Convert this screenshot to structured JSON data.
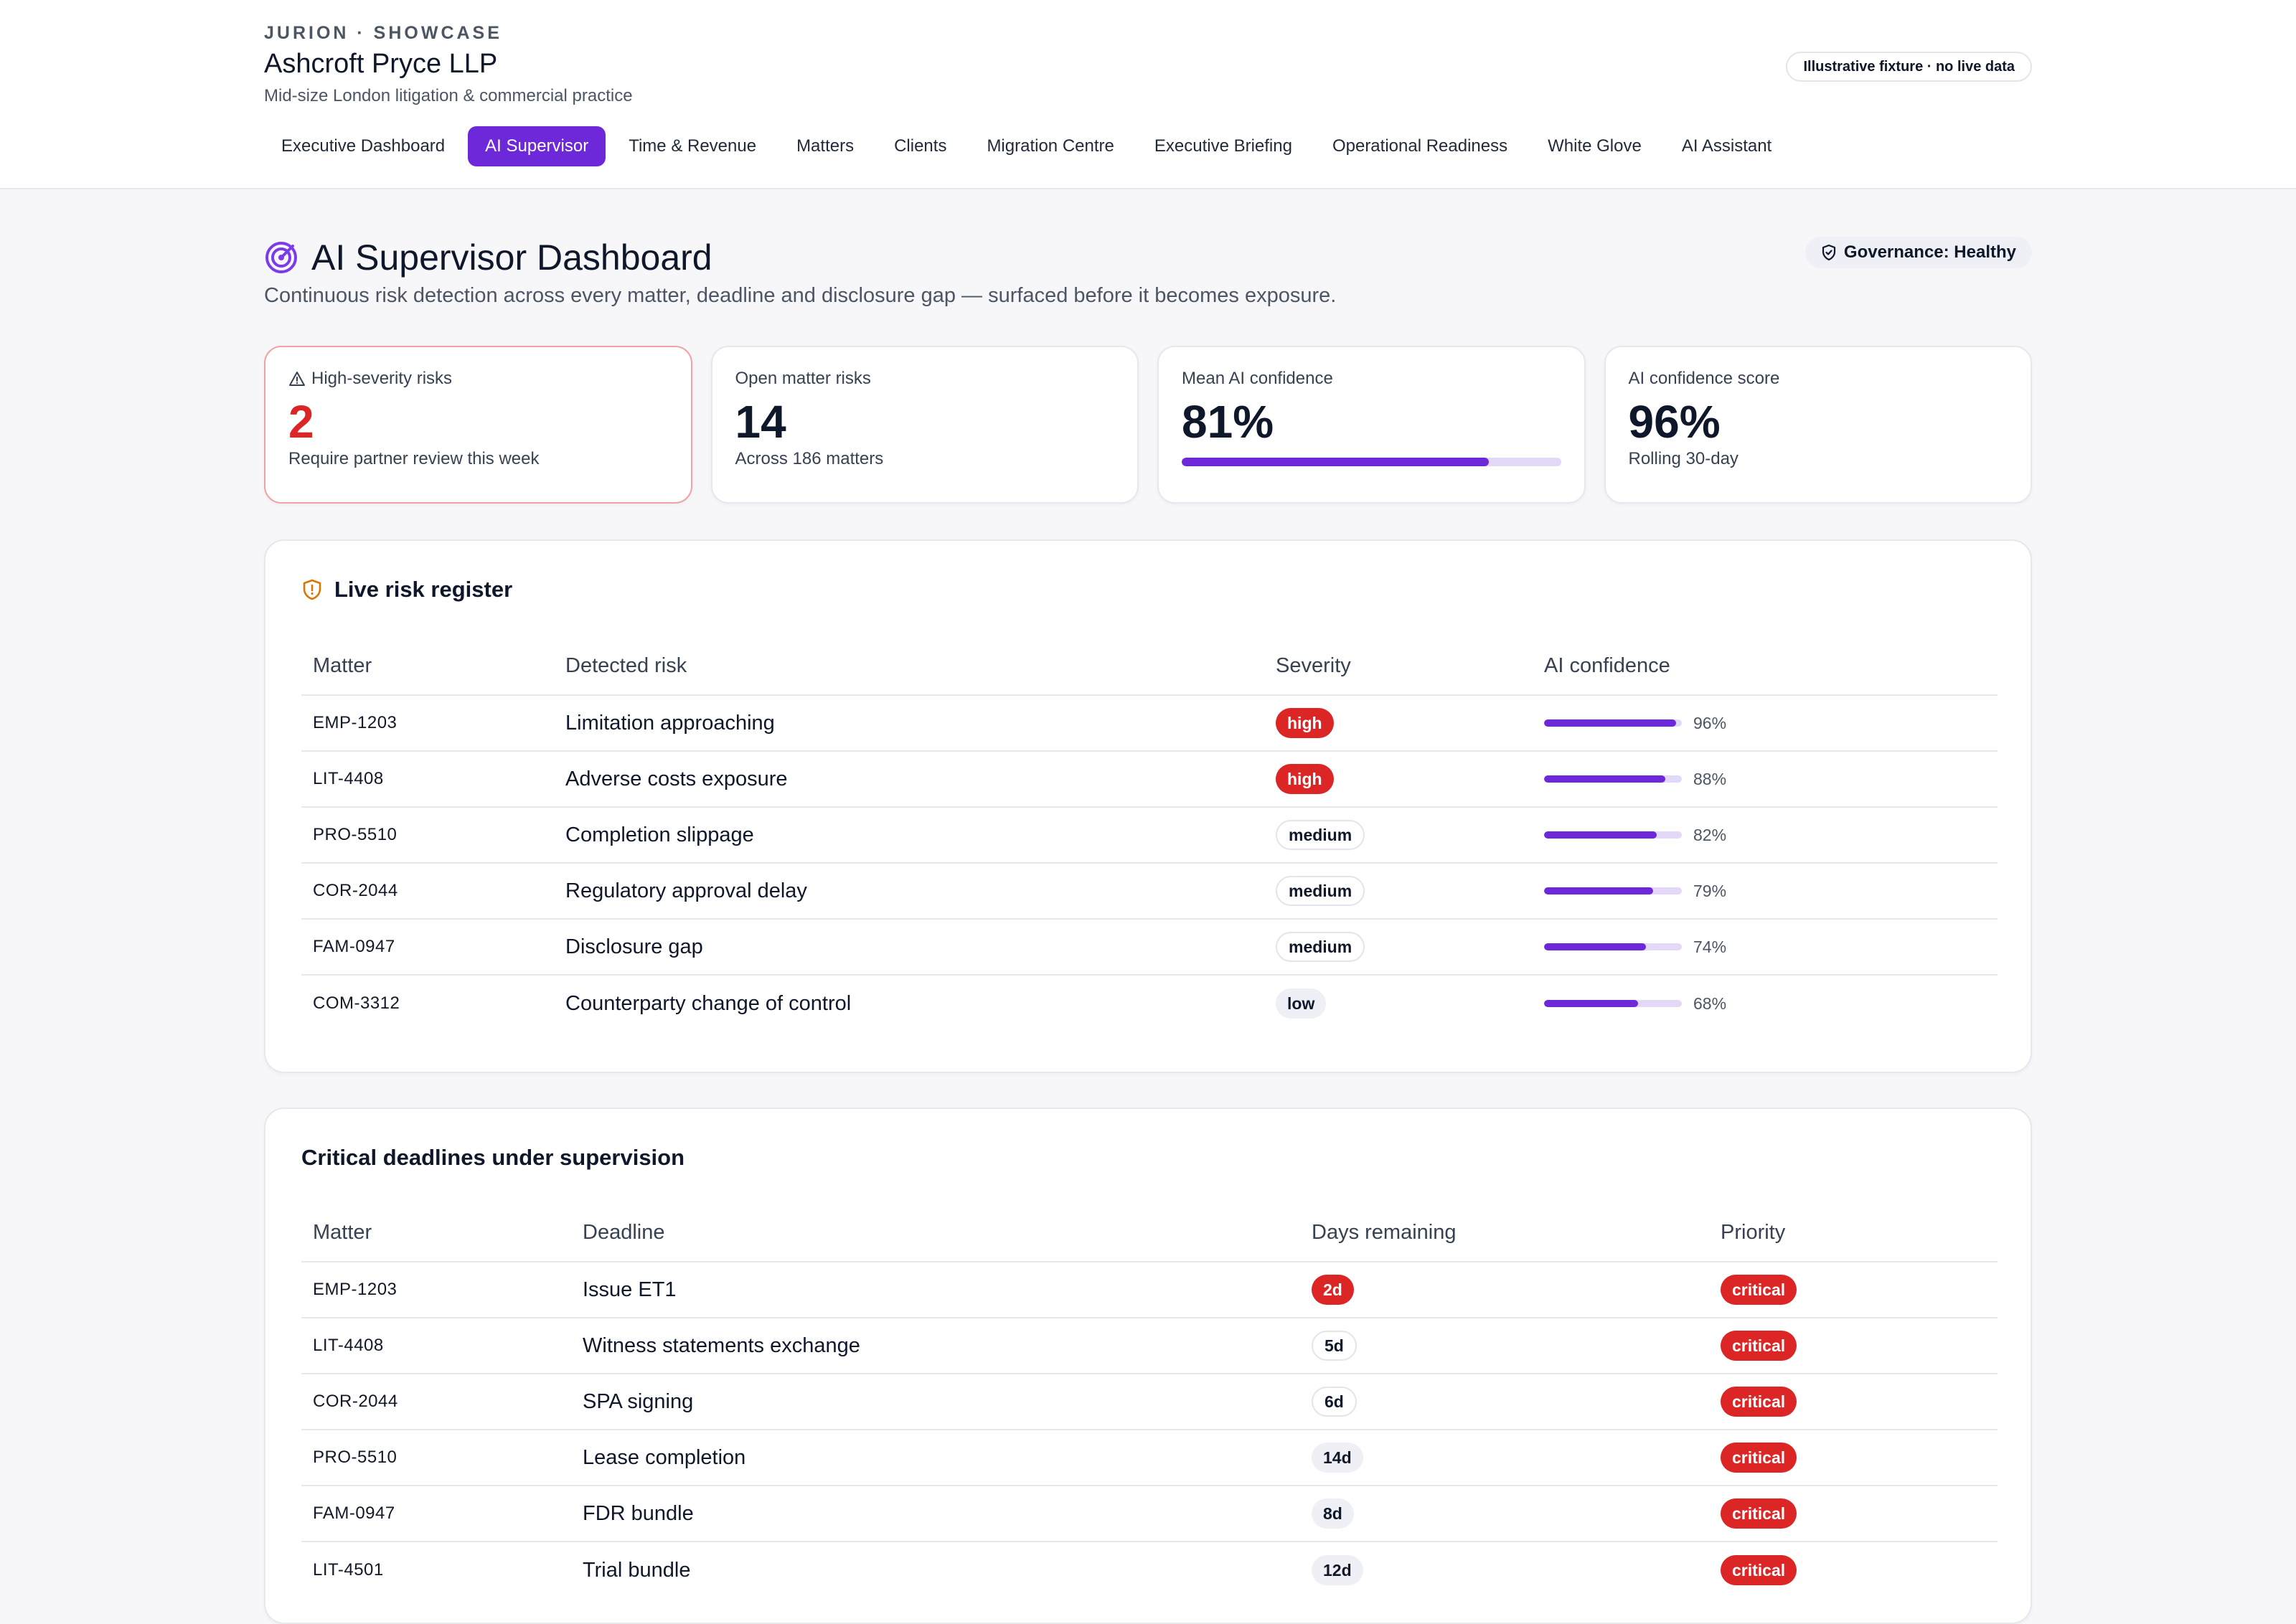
{
  "header": {
    "eyebrow": "JURION · SHOWCASE",
    "firm_name": "Ashcroft Pryce LLP",
    "firm_subtitle": "Mid-size London litigation & commercial practice",
    "fixture_badge": "Illustrative fixture · no live data",
    "nav": [
      {
        "label": "Executive Dashboard",
        "active": false
      },
      {
        "label": "AI Supervisor",
        "active": true
      },
      {
        "label": "Time & Revenue",
        "active": false
      },
      {
        "label": "Matters",
        "active": false
      },
      {
        "label": "Clients",
        "active": false
      },
      {
        "label": "Migration Centre",
        "active": false
      },
      {
        "label": "Executive Briefing",
        "active": false
      },
      {
        "label": "Operational Readiness",
        "active": false
      },
      {
        "label": "White Glove",
        "active": false
      },
      {
        "label": "AI Assistant",
        "active": false
      }
    ]
  },
  "page": {
    "title": "AI Supervisor Dashboard",
    "subtitle": "Continuous risk detection across every matter, deadline and disclosure gap — surfaced before it becomes exposure.",
    "governance_badge": "Governance: Healthy",
    "accent_color": "#6d28d9",
    "danger_color": "#dc2626"
  },
  "kpis": [
    {
      "label": "High-severity risks",
      "value": "2",
      "foot": "Require partner review this week",
      "icon": "warning-triangle-icon"
    },
    {
      "label": "Open matter risks",
      "value": "14",
      "foot": "Across 186 matters"
    },
    {
      "label": "Mean AI confidence",
      "value": "81%",
      "progress": 0.81
    },
    {
      "label": "AI confidence score",
      "value": "96%",
      "foot": "Rolling 30-day"
    }
  ],
  "risk_register": {
    "title": "Live risk register",
    "columns": [
      "Matter",
      "Detected risk",
      "Severity",
      "AI confidence"
    ],
    "rows": [
      {
        "matter": "EMP-1203",
        "risk": "Limitation approaching",
        "severity": "high",
        "confidence": 0.96,
        "confidence_label": "96%"
      },
      {
        "matter": "LIT-4408",
        "risk": "Adverse costs exposure",
        "severity": "high",
        "confidence": 0.88,
        "confidence_label": "88%"
      },
      {
        "matter": "PRO-5510",
        "risk": "Completion slippage",
        "severity": "medium",
        "confidence": 0.82,
        "confidence_label": "82%"
      },
      {
        "matter": "COR-2044",
        "risk": "Regulatory approval delay",
        "severity": "medium",
        "confidence": 0.79,
        "confidence_label": "79%"
      },
      {
        "matter": "FAM-0947",
        "risk": "Disclosure gap",
        "severity": "medium",
        "confidence": 0.74,
        "confidence_label": "74%"
      },
      {
        "matter": "COM-3312",
        "risk": "Counterparty change of control",
        "severity": "low",
        "confidence": 0.68,
        "confidence_label": "68%"
      }
    ]
  },
  "deadlines": {
    "title": "Critical deadlines under supervision",
    "columns": [
      "Matter",
      "Deadline",
      "Days remaining",
      "Priority"
    ],
    "rows": [
      {
        "matter": "EMP-1203",
        "deadline": "Issue ET1",
        "days": "2d",
        "urgent": true,
        "priority": "critical"
      },
      {
        "matter": "LIT-4408",
        "deadline": "Witness statements exchange",
        "days": "5d",
        "urgent": false,
        "priority": "critical"
      },
      {
        "matter": "COR-2044",
        "deadline": "SPA signing",
        "days": "6d",
        "urgent": false,
        "priority": "critical"
      },
      {
        "matter": "PRO-5510",
        "deadline": "Lease completion",
        "days": "14d",
        "urgent": false,
        "priority": "critical"
      },
      {
        "matter": "FAM-0947",
        "deadline": "FDR bundle",
        "days": "8d",
        "urgent": false,
        "priority": "critical"
      },
      {
        "matter": "LIT-4501",
        "deadline": "Trial bundle",
        "days": "12d",
        "urgent": false,
        "priority": "critical"
      }
    ]
  }
}
